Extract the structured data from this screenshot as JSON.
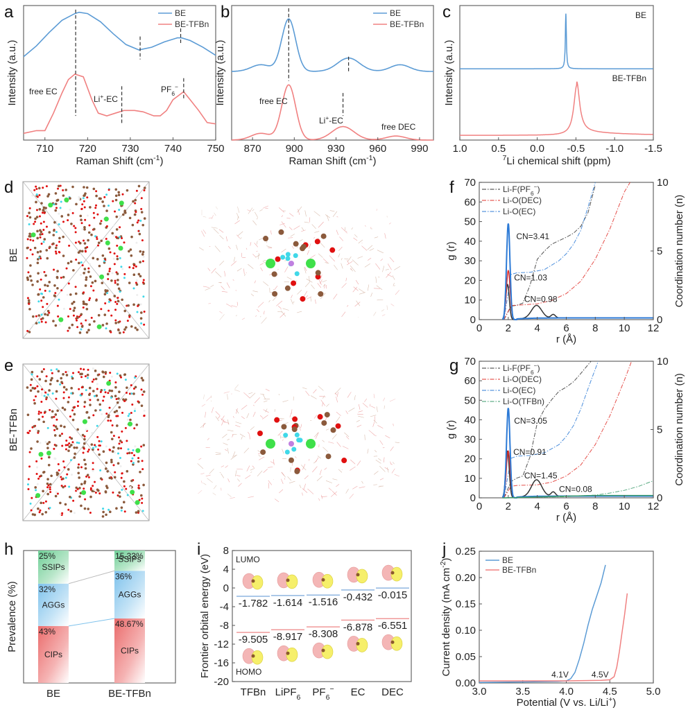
{
  "panels": {
    "a": "a",
    "b": "b",
    "c": "c",
    "d": "d",
    "e": "e",
    "f": "f",
    "g": "g",
    "h": "h",
    "i": "i",
    "j": "j"
  },
  "row_labels": {
    "d": "BE",
    "e": "BE-TFBn"
  },
  "colors": {
    "blue": "#5b9bd5",
    "red": "#f08080",
    "black": "#333333",
    "green": "#3a9a6a",
    "cn_blue": "#2c7ad6",
    "cn_red": "#e0302a",
    "cn_green": "#2f8f5f"
  },
  "chart_data": [
    {
      "id": "a",
      "type": "line",
      "title": "",
      "xlabel": "Raman Shift (cm-1)",
      "ylabel": "Intensity (a.u.)",
      "xlim": [
        705,
        750
      ],
      "xticks": [
        710,
        720,
        730,
        740,
        750
      ],
      "legend": {
        "position": "top-right",
        "entries": [
          "BE",
          "BE-TFBn"
        ]
      },
      "series": [
        {
          "name": "BE",
          "x": [
            705,
            708,
            711,
            714,
            717,
            718,
            720,
            723,
            726,
            729,
            732,
            735,
            738,
            741,
            742,
            744,
            747,
            750
          ],
          "y": [
            0.62,
            0.7,
            0.8,
            0.89,
            0.94,
            0.95,
            0.94,
            0.88,
            0.79,
            0.71,
            0.67,
            0.69,
            0.73,
            0.76,
            0.76,
            0.74,
            0.69,
            0.63
          ]
        },
        {
          "name": "BE-TFBn",
          "x": [
            705,
            708,
            710,
            712,
            714,
            715.5,
            717,
            719,
            721,
            722.5,
            724.5,
            726.5,
            728.5,
            731,
            733,
            735.5,
            737,
            738.5,
            740,
            742.5,
            744,
            746,
            748,
            750
          ],
          "y": [
            0.05,
            0.07,
            0.07,
            0.2,
            0.35,
            0.45,
            0.49,
            0.47,
            0.3,
            0.2,
            0.18,
            0.2,
            0.22,
            0.22,
            0.21,
            0.18,
            0.18,
            0.22,
            0.3,
            0.36,
            0.3,
            0.22,
            0.13,
            0.12
          ]
        }
      ],
      "vlines": [
        717.2,
        728,
        732.3,
        741.8,
        742.5
      ],
      "annotations": [
        "free EC",
        "Li+-EC",
        "PF6-"
      ]
    },
    {
      "id": "b",
      "type": "line",
      "xlabel": "Raman Shift (cm-1)",
      "ylabel": "Intensity (a.u.)",
      "xlim": [
        855,
        1000
      ],
      "xticks": [
        870,
        900,
        930,
        960,
        990
      ],
      "legend": {
        "position": "top-right",
        "entries": [
          "BE",
          "BE-TFBn"
        ]
      },
      "series": [
        {
          "name": "BE",
          "peaks": [
            [
              876,
              0.05,
              7
            ],
            [
              896,
              0.39,
              5
            ],
            [
              939,
              0.1,
              8
            ],
            [
              976,
              0.05,
              7
            ]
          ],
          "baseline": 0.51
        },
        {
          "name": "BE-TFBn",
          "peaks": [
            [
              876,
              0.05,
              7
            ],
            [
              896,
              0.41,
              5
            ],
            [
              935,
              0.1,
              8
            ],
            [
              973,
              0.03,
              7
            ]
          ],
          "baseline": 0.0
        }
      ],
      "vlines": [
        896,
        939,
        935
      ],
      "annotations": [
        "free EC",
        "Li+-EC",
        "free DEC"
      ]
    },
    {
      "id": "c",
      "type": "line",
      "xlabel": "7Li chemical shift (ppm)",
      "ylabel": "Intensity (a.u.)",
      "xlim": [
        1.0,
        -1.5
      ],
      "xticks": [
        1.0,
        0.5,
        0.0,
        -0.5,
        -1.0,
        -1.5
      ],
      "series": [
        {
          "name": "BE",
          "peak_ppm": -0.37,
          "width": 0.008
        },
        {
          "name": "BE-TFBn",
          "peak_ppm": -0.51,
          "width": 0.045
        }
      ],
      "annotations": [
        "BE",
        "BE-TFBn"
      ]
    },
    {
      "id": "f",
      "type": "line",
      "xlabel": "r (Å)",
      "ylabel": "g (r)",
      "y2label": "Coordination number (n)",
      "xlim": [
        0,
        12
      ],
      "ylim": [
        0,
        70
      ],
      "y2lim": [
        0,
        10
      ],
      "xticks": [
        0,
        2,
        4,
        6,
        8,
        10,
        12
      ],
      "yticks": [
        0,
        10,
        20,
        30,
        40,
        50,
        60,
        70
      ],
      "y2ticks": [
        0,
        5,
        10
      ],
      "legend": {
        "position": "top-left",
        "entries": [
          "Li-F(PF6-)",
          "Li-O(DEC)",
          "Li-O(EC)"
        ]
      },
      "series": [
        {
          "name": "Li-F(PF6-) g(r)",
          "peaks": [
            [
              1.95,
              18,
              0.12
            ],
            [
              3.95,
              6.5,
              0.35
            ],
            [
              5.1,
              1.8,
              0.15
            ]
          ]
        },
        {
          "name": "Li-O(DEC) g(r)",
          "peaks": [
            [
              2.0,
              25,
              0.13
            ]
          ]
        },
        {
          "name": "Li-O(EC) g(r)",
          "peaks": [
            [
              2.0,
              49,
              0.12
            ]
          ]
        },
        {
          "name": "Li-F(PF6-) CN",
          "x": [
            1.7,
            2.2,
            2.6,
            3.0,
            3.5,
            4.0,
            4.5,
            5.0,
            5.5,
            6.0,
            6.5,
            7.0,
            7.5,
            8.0
          ],
          "y": [
            0,
            0.98,
            1.05,
            1.2,
            2.5,
            4.4,
            5.0,
            5.5,
            5.75,
            6.0,
            6.3,
            6.8,
            7.8,
            9.8
          ]
        },
        {
          "name": "Li-O(DEC) CN",
          "x": [
            1.7,
            2.2,
            2.6,
            4.0,
            5.0,
            6.0,
            7.0,
            8.0,
            9.0,
            10.0,
            10.4
          ],
          "y": [
            0,
            1.03,
            1.05,
            1.15,
            1.4,
            1.9,
            2.8,
            4.4,
            6.6,
            9.3,
            10.0
          ]
        },
        {
          "name": "Li-O(EC) CN",
          "x": [
            1.7,
            2.2,
            2.6,
            3.5,
            4.5,
            5.5,
            6.0,
            6.5,
            7.0,
            7.5,
            8.0
          ],
          "y": [
            0,
            3.3,
            3.41,
            3.45,
            3.65,
            4.3,
            4.8,
            5.5,
            6.5,
            8.2,
            10.0
          ]
        }
      ],
      "annotations": [
        "CN=3.41",
        "CN=1.03",
        "CN=0.98"
      ]
    },
    {
      "id": "g",
      "type": "line",
      "xlabel": "r (Å)",
      "ylabel": "g (r)",
      "y2label": "Coordination number (n)",
      "xlim": [
        0,
        12
      ],
      "ylim": [
        0,
        70
      ],
      "y2lim": [
        0,
        10
      ],
      "xticks": [
        0,
        2,
        4,
        6,
        8,
        10,
        12
      ],
      "yticks": [
        0,
        10,
        20,
        30,
        40,
        50,
        60,
        70
      ],
      "y2ticks": [
        0,
        5,
        10
      ],
      "legend": {
        "position": "top-left",
        "entries": [
          "Li-F(PF6-)",
          "Li-O(DEC)",
          "Li-O(EC)",
          "Li-O(TFBn)"
        ]
      },
      "series": [
        {
          "name": "Li-F(PF6-) g(r)",
          "peaks": [
            [
              1.95,
              24,
              0.12
            ],
            [
              3.95,
              8.5,
              0.35
            ],
            [
              5.1,
              2.2,
              0.15
            ]
          ]
        },
        {
          "name": "Li-O(DEC) g(r)",
          "peaks": [
            [
              2.0,
              24,
              0.13
            ]
          ]
        },
        {
          "name": "Li-O(EC) g(r)",
          "peaks": [
            [
              2.0,
              46,
              0.12
            ]
          ]
        },
        {
          "name": "Li-O(TFBn) g(r)",
          "peaks": [
            [
              9.0,
              1.2,
              2.0
            ]
          ]
        },
        {
          "name": "Li-F(PF6-) CN",
          "x": [
            1.7,
            2.2,
            2.6,
            3.0,
            3.5,
            4.0,
            4.5,
            5.0,
            5.5,
            6.0,
            6.5,
            7.0,
            7.7
          ],
          "y": [
            0,
            1.2,
            1.45,
            1.6,
            3.0,
            5.5,
            6.5,
            7.2,
            7.8,
            8.1,
            8.5,
            9.1,
            10.0
          ]
        },
        {
          "name": "Li-O(DEC) CN",
          "x": [
            1.7,
            2.2,
            2.6,
            4.0,
            5.0,
            6.0,
            7.0,
            8.0,
            9.0,
            10.0,
            10.5
          ],
          "y": [
            0,
            0.85,
            0.91,
            0.95,
            1.15,
            1.6,
            2.4,
            3.9,
            6.0,
            8.6,
            10.0
          ]
        },
        {
          "name": "Li-O(EC) CN",
          "x": [
            1.7,
            2.2,
            2.6,
            3.5,
            4.5,
            5.5,
            6.0,
            6.5,
            7.0,
            7.5,
            8.2
          ],
          "y": [
            0,
            2.9,
            3.05,
            3.1,
            3.3,
            3.9,
            4.5,
            5.3,
            6.5,
            8.0,
            10.0
          ]
        },
        {
          "name": "Li-O(TFBn) CN",
          "x": [
            1.7,
            4.0,
            6.0,
            8.0,
            9.0,
            10.0,
            11.0,
            12.0
          ],
          "y": [
            0,
            0.05,
            0.08,
            0.2,
            0.35,
            0.55,
            0.85,
            1.25
          ]
        }
      ],
      "annotations": [
        "CN=3.05",
        "CN=0.91",
        "CN=1.45",
        "CN=0.08"
      ]
    },
    {
      "id": "h",
      "type": "bar",
      "ylabel": "Prevalence (%)",
      "categories": [
        "BE",
        "BE-TFBn"
      ],
      "series": [
        {
          "name": "CIPs",
          "values": [
            43,
            48.67
          ],
          "labels": [
            "43%",
            "48.67%"
          ]
        },
        {
          "name": "AGGs",
          "values": [
            32,
            36
          ],
          "labels": [
            "32%",
            "36%"
          ]
        },
        {
          "name": "SSIPs",
          "values": [
            25,
            15.33
          ],
          "labels": [
            "25%",
            "15.33%"
          ]
        }
      ],
      "stacked": true
    },
    {
      "id": "i",
      "type": "scatter",
      "ylabel": "Frontier orbital energy (eV)",
      "ylim": [
        -20,
        8
      ],
      "yticks": [
        8,
        4,
        0,
        -4,
        -8,
        -12,
        -16,
        -20
      ],
      "categories": [
        "TFBn",
        "LiPF6",
        "PF6-",
        "EC",
        "DEC"
      ],
      "category_display": [
        [
          "TFBn",
          ""
        ],
        [
          "LiPF",
          "6"
        ],
        [
          "PF",
          "6",
          "−"
        ],
        [
          "EC",
          ""
        ],
        [
          "DEC",
          ""
        ]
      ],
      "series": [
        {
          "name": "LUMO",
          "values": [
            -1.782,
            -1.614,
            -1.516,
            -0.432,
            -0.015
          ],
          "labels": [
            "-1.782",
            "-1.614",
            "-1.516",
            "-0.432",
            "-0.015"
          ]
        },
        {
          "name": "HOMO",
          "values": [
            -9.505,
            -8.917,
            -8.308,
            -6.878,
            -6.551
          ],
          "labels": [
            "-9.505",
            "-8.917",
            "-8.308",
            "-6.878",
            "-6.551"
          ]
        }
      ],
      "annotations": [
        "LUMO",
        "HOMO"
      ]
    },
    {
      "id": "j",
      "type": "line",
      "xlabel": "Potential (V vs. Li/Li+)",
      "ylabel": "Current density (mA cm-2)",
      "xlim": [
        3.0,
        5.0
      ],
      "ylim": [
        0,
        0.25
      ],
      "xticks": [
        3.0,
        3.5,
        4.0,
        4.5,
        5.0
      ],
      "yticks": [
        0.0,
        0.05,
        0.1,
        0.15,
        0.2,
        0.25
      ],
      "legend": {
        "position": "top-left",
        "entries": [
          "BE",
          "BE-TFBn"
        ]
      },
      "series": [
        {
          "name": "BE",
          "x": [
            3.0,
            3.5,
            3.9,
            4.0,
            4.05,
            4.1,
            4.15,
            4.2,
            4.25,
            4.3,
            4.35,
            4.4,
            4.45
          ],
          "y": [
            0.001,
            0.002,
            0.003,
            0.004,
            0.008,
            0.02,
            0.045,
            0.075,
            0.11,
            0.14,
            0.165,
            0.19,
            0.224
          ]
        },
        {
          "name": "BE-TFBn",
          "x": [
            3.0,
            3.5,
            4.0,
            4.4,
            4.5,
            4.55,
            4.58,
            4.61,
            4.64,
            4.67,
            4.7
          ],
          "y": [
            0.004,
            0.004,
            0.004,
            0.005,
            0.006,
            0.012,
            0.03,
            0.06,
            0.095,
            0.13,
            0.17
          ]
        }
      ],
      "annotations": [
        "4.1V",
        "4.5V"
      ]
    }
  ]
}
